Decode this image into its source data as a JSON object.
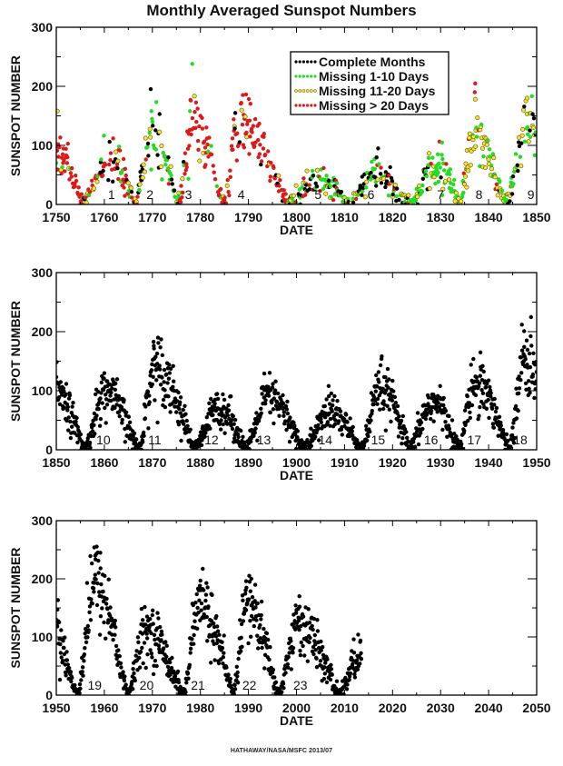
{
  "title": "Monthly Averaged Sunspot Numbers",
  "footer": "HATHAWAY/NASA/MSFC 2013/07",
  "colors": {
    "complete": "#000000",
    "missing_1_10": "#22dd22",
    "missing_11_20": "#ffe030",
    "missing_11_20_edge": "#555500",
    "missing_gt_20": "#dd1a1a",
    "axis": "#000000"
  },
  "chart_data": [
    {
      "type": "scatter",
      "panel": "1750-1850",
      "xlabel": "DATE",
      "ylabel": "SUNSPOT NUMBER",
      "xlim": [
        1750,
        1850
      ],
      "ylim": [
        0,
        300
      ],
      "xticks": [
        "1750",
        "1760",
        "1770",
        "1780",
        "1790",
        "1800",
        "1810",
        "1820",
        "1830",
        "1840",
        "1850"
      ],
      "yticks": [
        "0",
        "100",
        "200",
        "300"
      ],
      "legend": {
        "placement": "top-right",
        "entries": [
          {
            "label": "Complete Months",
            "series": "complete"
          },
          {
            "label": "Missing 1-10 Days",
            "series": "missing_1_10"
          },
          {
            "label": "Missing 11-20 Days",
            "series": "missing_11_20"
          },
          {
            "label": "Missing > 20 Days",
            "series": "missing_gt_20"
          }
        ]
      },
      "cycle_labels": [
        {
          "text": "1",
          "year": 1761.5
        },
        {
          "text": "2",
          "year": 1769.5
        },
        {
          "text": "3",
          "year": 1777.5
        },
        {
          "text": "4",
          "year": 1788.5
        },
        {
          "text": "5",
          "year": 1804.5
        },
        {
          "text": "6",
          "year": 1815.5
        },
        {
          "text": "7",
          "year": 1830.0
        },
        {
          "text": "8",
          "year": 1838.0
        },
        {
          "text": "9",
          "year": 1848.8
        }
      ],
      "cycles": [
        {
          "start": 1744.0,
          "max": 1750.2,
          "end": 1755.5,
          "peak": 90,
          "mix": {
            "missing_gt_20": 0.75,
            "missing_11_20": 0.15,
            "missing_1_10": 0.1
          }
        },
        {
          "start": 1755.5,
          "max": 1761.2,
          "end": 1766.5,
          "peak": 80,
          "mix": {
            "missing_gt_20": 0.5,
            "missing_11_20": 0.2,
            "missing_1_10": 0.15,
            "complete": 0.15
          }
        },
        {
          "start": 1766.5,
          "max": 1770.0,
          "end": 1775.5,
          "peak": 120,
          "mix": {
            "missing_1_10": 0.45,
            "complete": 0.25,
            "missing_11_20": 0.2,
            "missing_gt_20": 0.1
          }
        },
        {
          "start": 1775.5,
          "max": 1778.5,
          "end": 1784.7,
          "peak": 140,
          "mix": {
            "missing_gt_20": 0.8,
            "missing_11_20": 0.1,
            "missing_1_10": 0.05,
            "complete": 0.05
          }
        },
        {
          "start": 1784.7,
          "max": 1788.3,
          "end": 1798.3,
          "peak": 135,
          "mix": {
            "missing_gt_20": 0.88,
            "missing_11_20": 0.07,
            "complete": 0.05
          }
        },
        {
          "start": 1798.3,
          "max": 1804.5,
          "end": 1810.6,
          "peak": 45,
          "mix": {
            "missing_1_10": 0.4,
            "complete": 0.25,
            "missing_11_20": 0.15,
            "missing_gt_20": 0.2
          }
        },
        {
          "start": 1810.6,
          "max": 1816.5,
          "end": 1823.3,
          "peak": 45,
          "mix": {
            "complete": 0.55,
            "missing_1_10": 0.25,
            "missing_11_20": 0.15,
            "missing_gt_20": 0.05
          }
        },
        {
          "start": 1823.3,
          "max": 1829.5,
          "end": 1833.9,
          "peak": 65,
          "mix": {
            "missing_1_10": 0.7,
            "missing_11_20": 0.2,
            "complete": 0.07,
            "missing_gt_20": 0.03
          }
        },
        {
          "start": 1833.9,
          "max": 1837.2,
          "end": 1843.5,
          "peak": 110,
          "mix": {
            "missing_11_20": 0.55,
            "missing_1_10": 0.35,
            "missing_gt_20": 0.07,
            "complete": 0.03
          }
        },
        {
          "start": 1843.5,
          "max": 1848.1,
          "end": 1856.0,
          "peak": 125,
          "mix": {
            "missing_1_10": 0.45,
            "missing_11_20": 0.35,
            "complete": 0.2
          }
        }
      ],
      "outliers": [
        {
          "x": 1778.3,
          "y": 238,
          "series": "missing_1_10"
        },
        {
          "x": 1778.0,
          "y": 176,
          "series": "missing_gt_20"
        },
        {
          "x": 1788.5,
          "y": 172,
          "series": "missing_gt_20"
        },
        {
          "x": 1837.2,
          "y": 205,
          "series": "missing_gt_20"
        },
        {
          "x": 1837.1,
          "y": 190,
          "series": "missing_gt_20"
        },
        {
          "x": 1837.2,
          "y": 178,
          "series": "missing_11_20"
        },
        {
          "x": 1848.0,
          "y": 180,
          "series": "missing_11_20"
        },
        {
          "x": 1769.8,
          "y": 158,
          "series": "missing_1_10"
        },
        {
          "x": 1771.5,
          "y": 153,
          "series": "complete"
        },
        {
          "x": 1817.0,
          "y": 95,
          "series": "complete"
        },
        {
          "x": 1830.3,
          "y": 105,
          "series": "missing_1_10"
        },
        {
          "x": 1761.1,
          "y": 106,
          "series": "complete"
        },
        {
          "x": 1750.2,
          "y": 158,
          "series": "missing_11_20"
        },
        {
          "x": 1750.4,
          "y": 102,
          "series": "missing_gt_20"
        }
      ]
    },
    {
      "type": "scatter",
      "panel": "1850-1950",
      "xlabel": "DATE",
      "ylabel": "SUNSPOT NUMBER",
      "xlim": [
        1850,
        1950
      ],
      "ylim": [
        0,
        300
      ],
      "xticks": [
        "1850",
        "1860",
        "1870",
        "1880",
        "1890",
        "1900",
        "1910",
        "1920",
        "1930",
        "1940",
        "1950"
      ],
      "yticks": [
        "0",
        "100",
        "200",
        "300"
      ],
      "cycle_labels": [
        {
          "text": "10",
          "year": 1859.8
        },
        {
          "text": "11",
          "year": 1870.5
        },
        {
          "text": "12",
          "year": 1882.3
        },
        {
          "text": "13",
          "year": 1893.2
        },
        {
          "text": "14",
          "year": 1906.0
        },
        {
          "text": "15",
          "year": 1917.0
        },
        {
          "text": "16",
          "year": 1928.0
        },
        {
          "text": "17",
          "year": 1937.0
        },
        {
          "text": "18",
          "year": 1946.6
        }
      ],
      "cycles": [
        {
          "start": 1843.5,
          "max": 1848.1,
          "end": 1856.0,
          "peak": 125,
          "mix": {
            "complete": 1
          }
        },
        {
          "start": 1856.0,
          "max": 1860.1,
          "end": 1867.2,
          "peak": 95,
          "mix": {
            "complete": 1
          }
        },
        {
          "start": 1867.2,
          "max": 1870.6,
          "end": 1878.9,
          "peak": 140,
          "mix": {
            "complete": 1
          }
        },
        {
          "start": 1878.9,
          "max": 1883.9,
          "end": 1889.6,
          "peak": 70,
          "mix": {
            "complete": 1
          }
        },
        {
          "start": 1889.6,
          "max": 1894.1,
          "end": 1901.7,
          "peak": 85,
          "mix": {
            "complete": 1
          }
        },
        {
          "start": 1901.7,
          "max": 1907.0,
          "end": 1913.6,
          "peak": 62,
          "mix": {
            "complete": 1
          }
        },
        {
          "start": 1913.6,
          "max": 1917.6,
          "end": 1923.6,
          "peak": 100,
          "mix": {
            "complete": 1
          }
        },
        {
          "start": 1923.6,
          "max": 1928.4,
          "end": 1933.8,
          "peak": 78,
          "mix": {
            "complete": 1
          }
        },
        {
          "start": 1933.8,
          "max": 1937.4,
          "end": 1944.2,
          "peak": 115,
          "mix": {
            "complete": 1
          }
        },
        {
          "start": 1944.2,
          "max": 1947.5,
          "end": 1954.3,
          "peak": 150,
          "mix": {
            "complete": 1
          }
        }
      ],
      "outliers": [
        {
          "x": 1851.5,
          "y": 104,
          "series": "complete"
        },
        {
          "x": 1870.3,
          "y": 176,
          "series": "complete"
        },
        {
          "x": 1871.0,
          "y": 163,
          "series": "complete"
        },
        {
          "x": 1893.3,
          "y": 129,
          "series": "complete"
        },
        {
          "x": 1917.7,
          "y": 154,
          "series": "complete"
        },
        {
          "x": 1938.3,
          "y": 165,
          "series": "complete"
        },
        {
          "x": 1947.4,
          "y": 201,
          "series": "complete"
        },
        {
          "x": 1860.6,
          "y": 116,
          "series": "complete"
        },
        {
          "x": 1906.7,
          "y": 108,
          "series": "complete"
        },
        {
          "x": 1929.9,
          "y": 108,
          "series": "complete"
        }
      ]
    },
    {
      "type": "scatter",
      "panel": "1950-2050",
      "xlabel": "DATE",
      "ylabel": "SUNSPOT NUMBER",
      "xlim": [
        1950,
        2050
      ],
      "ylim": [
        0,
        300
      ],
      "xticks": [
        "1950",
        "1960",
        "1970",
        "1980",
        "1990",
        "2000",
        "2010",
        "2020",
        "2030",
        "2040",
        "2050"
      ],
      "yticks": [
        "0",
        "100",
        "200",
        "300"
      ],
      "data_end": 2013.5,
      "cycle_labels": [
        {
          "text": "19",
          "year": 1958.0
        },
        {
          "text": "20",
          "year": 1968.8
        },
        {
          "text": "21",
          "year": 1979.5
        },
        {
          "text": "22",
          "year": 1990.2
        },
        {
          "text": "23",
          "year": 2000.8
        }
      ],
      "cycles": [
        {
          "start": 1944.2,
          "max": 1947.5,
          "end": 1954.3,
          "peak": 150,
          "mix": {
            "complete": 1
          }
        },
        {
          "start": 1954.3,
          "max": 1958.2,
          "end": 1964.9,
          "peak": 190,
          "mix": {
            "complete": 1
          }
        },
        {
          "start": 1964.9,
          "max": 1968.9,
          "end": 1976.5,
          "peak": 108,
          "mix": {
            "complete": 1
          }
        },
        {
          "start": 1976.5,
          "max": 1979.9,
          "end": 1986.8,
          "peak": 155,
          "mix": {
            "complete": 1
          }
        },
        {
          "start": 1986.8,
          "max": 1989.6,
          "end": 1996.4,
          "peak": 155,
          "mix": {
            "complete": 1
          }
        },
        {
          "start": 1996.4,
          "max": 2000.3,
          "end": 2008.9,
          "peak": 118,
          "mix": {
            "complete": 1
          }
        },
        {
          "start": 2008.9,
          "max": 2013.5,
          "end": 2020.0,
          "peak": 68,
          "mix": {
            "complete": 1
          }
        }
      ],
      "outliers": [
        {
          "x": 1957.9,
          "y": 254,
          "series": "complete"
        },
        {
          "x": 1958.1,
          "y": 240,
          "series": "complete"
        },
        {
          "x": 1959.2,
          "y": 218,
          "series": "complete"
        },
        {
          "x": 1979.9,
          "y": 188,
          "series": "complete"
        },
        {
          "x": 1989.5,
          "y": 196,
          "series": "complete"
        },
        {
          "x": 1990.6,
          "y": 200,
          "series": "complete"
        },
        {
          "x": 2000.6,
          "y": 170,
          "series": "complete"
        },
        {
          "x": 2001.9,
          "y": 151,
          "series": "complete"
        },
        {
          "x": 1968.9,
          "y": 135,
          "series": "complete"
        },
        {
          "x": 2011.9,
          "y": 96,
          "series": "complete"
        },
        {
          "x": 1950.2,
          "y": 118,
          "series": "complete"
        }
      ]
    }
  ]
}
